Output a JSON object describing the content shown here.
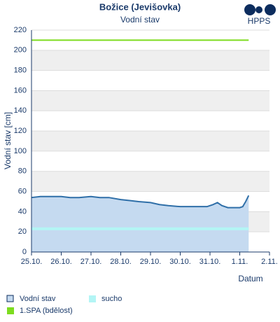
{
  "logo": "HPPS",
  "chart_data": {
    "type": "area",
    "title": "Božice (Jevišovka)",
    "subtitle": "Vodní stav",
    "y_label": "Vodní stav [cm]",
    "x_label": "Datum",
    "x": [
      0,
      0.3,
      0.6,
      1,
      1.3,
      1.6,
      2,
      2.3,
      2.6,
      3,
      3.3,
      3.6,
      4,
      4.3,
      4.6,
      5,
      5.5,
      5.9,
      6.1,
      6.25,
      6.4,
      6.6,
      7,
      7.1,
      7.2,
      7.3
    ],
    "series": [
      {
        "name": "Vodní stav",
        "color": "#2f6fa8",
        "fill": "#c5daf0",
        "values": [
          54,
          55,
          55,
          55,
          54,
          54,
          55,
          54,
          54,
          52,
          51,
          50,
          49,
          47,
          46,
          45,
          45,
          45,
          47,
          49,
          46,
          44,
          44,
          45,
          50,
          56
        ]
      }
    ],
    "thresholds": [
      {
        "name": "sucho",
        "value": 23,
        "color": "#b3f5f5"
      },
      {
        "name": "1.SPA (bdělost)",
        "value": 210,
        "color": "#7ddc1f"
      }
    ],
    "xlim": [
      0,
      8
    ],
    "xticks": [
      {
        "value": 0,
        "label": "25.10."
      },
      {
        "value": 1,
        "label": "26.10."
      },
      {
        "value": 2,
        "label": "27.10."
      },
      {
        "value": 3,
        "label": "28.10."
      },
      {
        "value": 4,
        "label": "29.10."
      },
      {
        "value": 5,
        "label": "30.10."
      },
      {
        "value": 6,
        "label": "31.10."
      },
      {
        "value": 7,
        "label": "1.11."
      },
      {
        "value": 8,
        "label": "2.11."
      }
    ],
    "ylim": [
      0,
      220
    ],
    "yticks": [
      0,
      20,
      40,
      60,
      80,
      100,
      120,
      140,
      160,
      180,
      200,
      220
    ],
    "grid": true
  }
}
